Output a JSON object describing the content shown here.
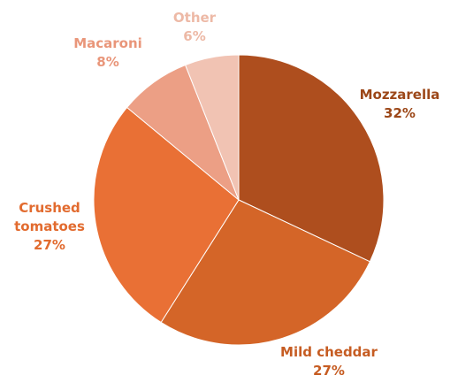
{
  "chart_data": {
    "type": "pie",
    "title": "",
    "slices": [
      {
        "label": "Mozzarella",
        "label_lines": [
          "Mozzarella"
        ],
        "pct_text": "32%",
        "value": 32,
        "color": "#AE4E1E",
        "label_color": "#9C4718"
      },
      {
        "label": "Mild cheddar",
        "label_lines": [
          "Mild cheddar"
        ],
        "pct_text": "27%",
        "value": 27,
        "color": "#D46528",
        "label_color": "#C65C22"
      },
      {
        "label": "Crushed tomatoes",
        "label_lines": [
          "Crushed",
          "tomatoes"
        ],
        "pct_text": "27%",
        "value": 27,
        "color": "#E97035",
        "label_color": "#E26B2F"
      },
      {
        "label": "Macaroni",
        "label_lines": [
          "Macaroni"
        ],
        "pct_text": "8%",
        "value": 8,
        "color": "#EC9F85",
        "label_color": "#E9967A"
      },
      {
        "label": "Other",
        "label_lines": [
          "Other"
        ],
        "pct_text": "6%",
        "value": 6,
        "color": "#F1C3B3",
        "label_color": "#EDB9A6"
      }
    ],
    "start_angle": "12 o'clock",
    "direction": "clockwise",
    "legend": "none"
  }
}
